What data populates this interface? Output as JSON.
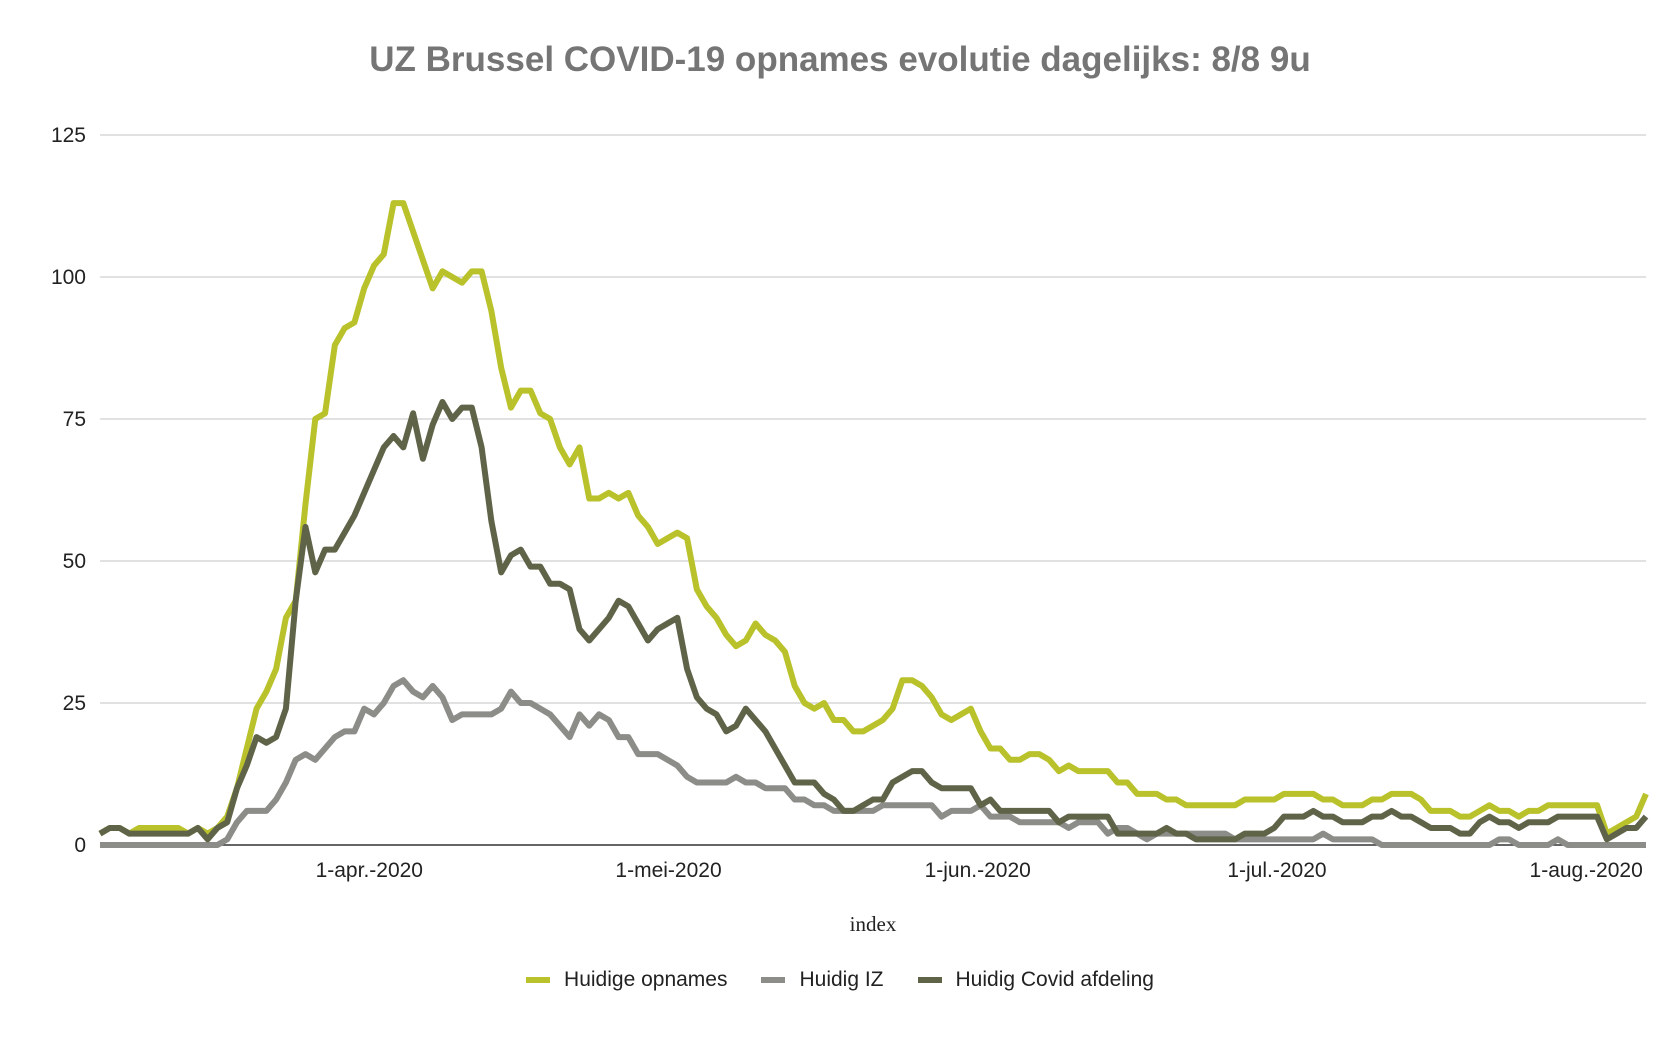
{
  "chart_data": {
    "type": "line",
    "title": "UZ Brussel COVID-19 opnames evolutie dagelijks: 8/8 9u",
    "xlabel": "index",
    "ylabel": "",
    "x_start": "2020-03-05",
    "x_end": "2020-08-07",
    "x_ticks": [
      {
        "date": "2020-04-01",
        "label": "1-apr.-2020"
      },
      {
        "date": "2020-05-01",
        "label": "1-mei-2020"
      },
      {
        "date": "2020-06-01",
        "label": "1-jun.-2020"
      },
      {
        "date": "2020-07-01",
        "label": "1-jul.-2020"
      },
      {
        "date": "2020-08-01",
        "label": "1-aug.-2020"
      }
    ],
    "y_ticks": [
      0,
      25,
      50,
      75,
      100,
      125
    ],
    "ylim": [
      0,
      125
    ],
    "grid": true,
    "legend_position": "bottom",
    "series": [
      {
        "name": "Huidige opnames",
        "color": "#b9c22b",
        "values": [
          2,
          3,
          3,
          2,
          3,
          3,
          3,
          3,
          3,
          2,
          3,
          2,
          3,
          5,
          10,
          17,
          24,
          27,
          31,
          40,
          43,
          60,
          75,
          76,
          88,
          91,
          92,
          98,
          102,
          104,
          113,
          113,
          108,
          103,
          98,
          101,
          100,
          99,
          101,
          101,
          94,
          84,
          77,
          80,
          80,
          76,
          75,
          70,
          67,
          70,
          61,
          61,
          62,
          61,
          62,
          58,
          56,
          53,
          54,
          55,
          54,
          45,
          42,
          40,
          37,
          35,
          36,
          39,
          37,
          36,
          34,
          28,
          25,
          24,
          25,
          22,
          22,
          20,
          20,
          21,
          22,
          24,
          29,
          29,
          28,
          26,
          23,
          22,
          23,
          24,
          20,
          17,
          17,
          15,
          15,
          16,
          16,
          15,
          13,
          14,
          13,
          13,
          13,
          13,
          11,
          11,
          9,
          9,
          9,
          8,
          8,
          7,
          7,
          7,
          7,
          7,
          7,
          8,
          8,
          8,
          8,
          9,
          9,
          9,
          9,
          8,
          8,
          7,
          7,
          7,
          8,
          8,
          9,
          9,
          9,
          8,
          6,
          6,
          6,
          5,
          5,
          6,
          7,
          6,
          6,
          5,
          6,
          6,
          7,
          7,
          7,
          7,
          7,
          7,
          2,
          3,
          4,
          5,
          9
        ]
      },
      {
        "name": "Huidig IZ",
        "color": "#8c8c88",
        "values": [
          0,
          0,
          0,
          0,
          0,
          0,
          0,
          0,
          0,
          0,
          0,
          0,
          0,
          1,
          4,
          6,
          6,
          6,
          8,
          11,
          15,
          16,
          15,
          17,
          19,
          20,
          20,
          24,
          23,
          25,
          28,
          29,
          27,
          26,
          28,
          26,
          22,
          23,
          23,
          23,
          23,
          24,
          27,
          25,
          25,
          24,
          23,
          21,
          19,
          23,
          21,
          23,
          22,
          19,
          19,
          16,
          16,
          16,
          15,
          14,
          12,
          11,
          11,
          11,
          11,
          12,
          11,
          11,
          10,
          10,
          10,
          8,
          8,
          7,
          7,
          6,
          6,
          6,
          6,
          6,
          7,
          7,
          7,
          7,
          7,
          7,
          5,
          6,
          6,
          6,
          7,
          5,
          5,
          5,
          4,
          4,
          4,
          4,
          4,
          3,
          4,
          4,
          4,
          2,
          3,
          3,
          2,
          1,
          2,
          2,
          2,
          2,
          2,
          2,
          2,
          2,
          1,
          1,
          1,
          1,
          1,
          1,
          1,
          1,
          1,
          2,
          1,
          1,
          1,
          1,
          1,
          0,
          0,
          0,
          0,
          0,
          0,
          0,
          0,
          0,
          0,
          0,
          0,
          1,
          1,
          0,
          0,
          0,
          0,
          1,
          0,
          0,
          0,
          0,
          0,
          0,
          0,
          0,
          0
        ]
      },
      {
        "name": "Huidig Covid afdeling",
        "color": "#5f6449",
        "values": [
          2,
          3,
          3,
          2,
          2,
          2,
          2,
          2,
          2,
          2,
          3,
          1,
          3,
          4,
          10,
          14,
          19,
          18,
          19,
          24,
          43,
          56,
          48,
          52,
          52,
          55,
          58,
          62,
          66,
          70,
          72,
          70,
          76,
          68,
          74,
          78,
          75,
          77,
          77,
          70,
          57,
          48,
          51,
          52,
          49,
          49,
          46,
          46,
          45,
          38,
          36,
          38,
          40,
          43,
          42,
          39,
          36,
          38,
          39,
          40,
          31,
          26,
          24,
          23,
          20,
          21,
          24,
          22,
          20,
          17,
          14,
          11,
          11,
          11,
          9,
          8,
          6,
          6,
          7,
          8,
          8,
          11,
          12,
          13,
          13,
          11,
          10,
          10,
          10,
          10,
          7,
          8,
          6,
          6,
          6,
          6,
          6,
          6,
          4,
          5,
          5,
          5,
          5,
          5,
          2,
          2,
          2,
          2,
          2,
          3,
          2,
          2,
          1,
          1,
          1,
          1,
          1,
          2,
          2,
          2,
          3,
          5,
          5,
          5,
          6,
          5,
          5,
          4,
          4,
          4,
          5,
          5,
          6,
          5,
          5,
          4,
          3,
          3,
          3,
          2,
          2,
          4,
          5,
          4,
          4,
          3,
          4,
          4,
          4,
          5,
          5,
          5,
          5,
          5,
          1,
          2,
          3,
          3,
          5
        ]
      }
    ]
  }
}
